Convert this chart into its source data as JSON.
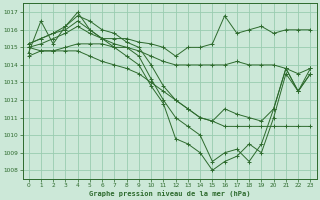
{
  "background_color": "#cce8d8",
  "grid_color": "#99ccb0",
  "line_color": "#2d6a2d",
  "xlabel": "Graphe pression niveau de la mer (hPa)",
  "xlim": [
    -0.5,
    23.5
  ],
  "ylim": [
    1007.5,
    1017.5
  ],
  "yticks": [
    1008,
    1009,
    1010,
    1011,
    1012,
    1013,
    1014,
    1015,
    1016,
    1017
  ],
  "xticks": [
    0,
    1,
    2,
    3,
    4,
    5,
    6,
    7,
    8,
    9,
    10,
    11,
    12,
    13,
    14,
    15,
    16,
    17,
    18,
    19,
    20,
    21,
    22,
    23
  ],
  "figsize": [
    3.2,
    2.0
  ],
  "dpi": 100,
  "series": [
    [
      1014.7,
      1016.5,
      1015.2,
      1016.2,
      1017.0,
      1016.0,
      1015.5,
      1015.5,
      1015.5,
      1015.3,
      1015.2,
      1015.0,
      1014.5,
      1015.0,
      1015.0,
      1015.2,
      1016.8,
      1015.8,
      1016.0,
      1016.2,
      1015.8,
      1016.0,
      1016.0,
      1016.0
    ],
    [
      1014.5,
      1014.8,
      1014.8,
      1015.0,
      1015.2,
      1015.2,
      1015.2,
      1015.0,
      1015.0,
      1014.8,
      1014.5,
      1014.2,
      1014.0,
      1014.0,
      1014.0,
      1014.0,
      1014.0,
      1014.2,
      1014.0,
      1014.0,
      1014.0,
      1013.8,
      1013.5,
      1013.8
    ],
    [
      1015.2,
      1015.5,
      1015.8,
      1016.2,
      1016.8,
      1016.5,
      1016.0,
      1015.8,
      1015.3,
      1015.0,
      1014.0,
      1012.8,
      1012.0,
      1011.5,
      1011.0,
      1010.8,
      1011.5,
      1011.2,
      1011.0,
      1010.8,
      1011.5,
      1013.8,
      1012.5,
      1013.5
    ],
    [
      1015.2,
      1015.5,
      1015.8,
      1016.0,
      1016.5,
      1016.0,
      1015.5,
      1015.0,
      1014.5,
      1014.0,
      1012.8,
      1011.8,
      1009.8,
      1009.5,
      1009.0,
      1008.0,
      1008.5,
      1008.8,
      1009.5,
      1009.0,
      1011.0,
      1013.5,
      1012.5,
      1013.8
    ],
    [
      1015.0,
      1015.2,
      1015.5,
      1015.8,
      1016.2,
      1015.8,
      1015.5,
      1015.2,
      1015.0,
      1014.5,
      1013.2,
      1012.0,
      1011.0,
      1010.5,
      1010.0,
      1008.5,
      1009.0,
      1009.2,
      1008.5,
      1009.5,
      1011.5,
      1013.8,
      1012.5,
      1013.5
    ],
    [
      1015.0,
      1014.8,
      1014.8,
      1014.8,
      1014.8,
      1014.5,
      1014.2,
      1014.0,
      1013.8,
      1013.5,
      1013.0,
      1012.5,
      1012.0,
      1011.5,
      1011.0,
      1010.8,
      1010.5,
      1010.5,
      1010.5,
      1010.5,
      1010.5,
      1010.5,
      1010.5,
      1010.5
    ]
  ]
}
